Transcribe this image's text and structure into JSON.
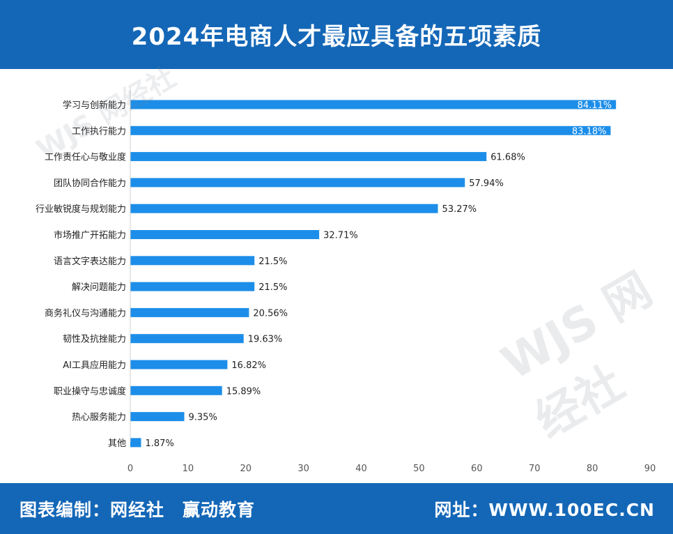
{
  "header": {
    "title": "2024年电商人才最应具备的五项素质"
  },
  "footer": {
    "credit_label": "图表编制：",
    "credit_org1": "网经社",
    "credit_org2": "赢动教育",
    "site_label": "网址：WWW.100EC.CN"
  },
  "watermark": {
    "logo": "WJS 网经社",
    "url": "WWW.100EC.CN"
  },
  "colors": {
    "header_bg": "#1467b7",
    "bar": "#1c8ee9",
    "text": "#222222",
    "axis": "#555555"
  },
  "chart_data": {
    "type": "bar",
    "orientation": "horizontal",
    "title": "",
    "xlabel": "",
    "ylabel": "",
    "xlim": [
      0,
      90
    ],
    "xticks": [
      0,
      10,
      20,
      30,
      40,
      50,
      60,
      70,
      80,
      90
    ],
    "grid": false,
    "categories": [
      "学习与创新能力",
      "工作执行能力",
      "工作责任心与敬业度",
      "团队协同合作能力",
      "行业敏锐度与规划能力",
      "市场推广开拓能力",
      "语言文字表达能力",
      "解决问题能力",
      "商务礼仪与沟通能力",
      "韧性及抗挫能力",
      "AI工具应用能力",
      "职业操守与忠诚度",
      "热心服务能力",
      "其他"
    ],
    "values": [
      84.11,
      83.18,
      61.68,
      57.94,
      53.27,
      32.71,
      21.5,
      21.5,
      20.56,
      19.63,
      16.82,
      15.89,
      9.35,
      1.87
    ],
    "value_labels": [
      "84.11%",
      "83.18%",
      "61.68%",
      "57.94%",
      "53.27%",
      "32.71%",
      "21.5%",
      "21.5%",
      "20.56%",
      "19.63%",
      "16.82%",
      "15.89%",
      "9.35%",
      "1.87%"
    ]
  }
}
